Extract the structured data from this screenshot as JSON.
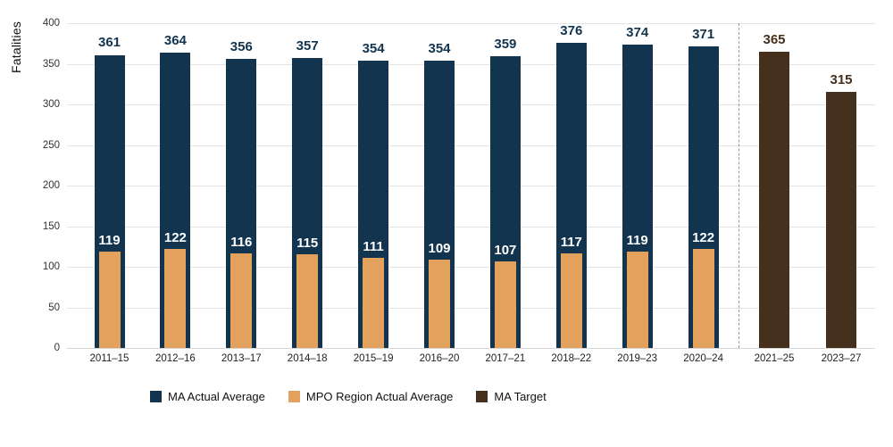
{
  "chart_data": {
    "type": "bar",
    "title": "",
    "xlabel": "",
    "ylabel": "Fatalities",
    "ylim": [
      0,
      400
    ],
    "ytick_step": 50,
    "yticks": [
      0,
      50,
      100,
      150,
      200,
      250,
      300,
      350,
      400
    ],
    "grid": true,
    "legend_position": "bottom",
    "categories": [
      "2011–15",
      "2012–16",
      "2013–17",
      "2014–18",
      "2015–19",
      "2016–20",
      "2017–21",
      "2018–22",
      "2019–23",
      "2020–24",
      "2021–25",
      "2023–27"
    ],
    "series": [
      {
        "name": "MA Actual Average",
        "color": "#12344f",
        "style": "outer-bar",
        "values": [
          361,
          364,
          356,
          357,
          354,
          354,
          359,
          376,
          374,
          371,
          null,
          null
        ]
      },
      {
        "name": "MPO Region Actual Average",
        "color": "#e2a15c",
        "style": "inner-bar",
        "label_color": "#ffffff",
        "values": [
          119,
          122,
          116,
          115,
          111,
          109,
          107,
          117,
          119,
          122,
          null,
          null
        ]
      },
      {
        "name": "MA Target",
        "color": "#452f1d",
        "style": "outer-bar",
        "values": [
          null,
          null,
          null,
          null,
          null,
          null,
          null,
          null,
          null,
          null,
          365,
          315
        ]
      }
    ],
    "separator": {
      "after_category_index": 9,
      "style": "dashed",
      "color": "#999999"
    }
  }
}
